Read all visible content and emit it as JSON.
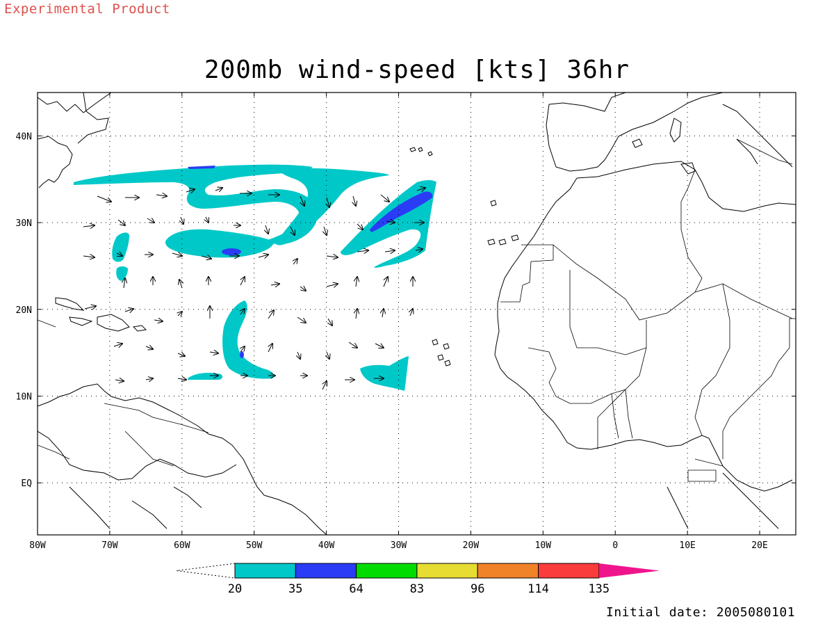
{
  "header": {
    "experimental_label": "Experimental Product",
    "title": "200mb wind-speed [kts] 36hr"
  },
  "footer": {
    "initial_date": "Initial date: 2005080101"
  },
  "map": {
    "lon_range": [
      -80,
      25
    ],
    "lat_range": [
      -6,
      45
    ],
    "lon_ticks": [
      {
        "value": -80,
        "label": "80W"
      },
      {
        "value": -70,
        "label": "70W"
      },
      {
        "value": -60,
        "label": "60W"
      },
      {
        "value": -50,
        "label": "50W"
      },
      {
        "value": -40,
        "label": "40W"
      },
      {
        "value": -30,
        "label": "30W"
      },
      {
        "value": -20,
        "label": "20W"
      },
      {
        "value": -10,
        "label": "10W"
      },
      {
        "value": 0,
        "label": "0"
      },
      {
        "value": 10,
        "label": "10E"
      },
      {
        "value": 20,
        "label": "20E"
      }
    ],
    "lat_ticks": [
      {
        "value": 40,
        "label": "40N"
      },
      {
        "value": 30,
        "label": "30N"
      },
      {
        "value": 20,
        "label": "20N"
      },
      {
        "value": 10,
        "label": "10N"
      },
      {
        "value": 0,
        "label": "EQ"
      }
    ],
    "gridlines": "dotted"
  },
  "colorbar": {
    "levels": [
      "20",
      "35",
      "64",
      "83",
      "96",
      "114",
      "135"
    ],
    "colors": [
      "#00c8c8",
      "#2a3cf5",
      "#00dc00",
      "#e6dc32",
      "#f08228",
      "#fa3c3c",
      "#f0148c"
    ],
    "units": "kts"
  }
}
